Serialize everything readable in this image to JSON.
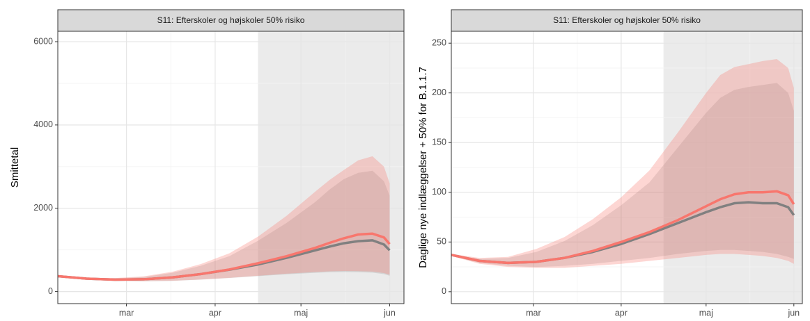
{
  "chart_data": [
    {
      "type": "line",
      "title": "S11: Efterskoler og højskoler 50% risiko",
      "ylabel": "Smittetal",
      "x": [
        36,
        46,
        56,
        66,
        76,
        86,
        96,
        106,
        116,
        126,
        131,
        136,
        141,
        146,
        150,
        152
      ],
      "xlim": [
        36,
        157
      ],
      "xticks": [
        {
          "value": 60,
          "label": "mar"
        },
        {
          "value": 91,
          "label": "apr"
        },
        {
          "value": 121,
          "label": "maj"
        },
        {
          "value": 152,
          "label": "jun"
        }
      ],
      "ylim": [
        -290,
        6250
      ],
      "yticks": [
        0,
        2000,
        4000,
        6000
      ],
      "grid": true,
      "shaded_from": 106,
      "series": [
        {
          "color": "#808080",
          "values": [
            370,
            310,
            285,
            295,
            340,
            420,
            525,
            650,
            810,
            990,
            1080,
            1160,
            1210,
            1230,
            1130,
            990
          ],
          "lower": [
            355,
            285,
            255,
            245,
            255,
            285,
            325,
            370,
            415,
            450,
            465,
            470,
            465,
            455,
            420,
            380
          ],
          "upper": [
            370,
            325,
            315,
            350,
            450,
            620,
            850,
            1220,
            1650,
            2150,
            2450,
            2700,
            2850,
            2900,
            2650,
            2300
          ]
        },
        {
          "color": "#F8766D",
          "values": [
            370,
            310,
            285,
            295,
            340,
            420,
            530,
            680,
            850,
            1050,
            1170,
            1280,
            1370,
            1390,
            1300,
            1140
          ],
          "lower": [
            360,
            290,
            260,
            250,
            260,
            290,
            330,
            380,
            430,
            470,
            485,
            495,
            490,
            480,
            445,
            405
          ],
          "upper": [
            375,
            335,
            325,
            365,
            475,
            660,
            920,
            1320,
            1820,
            2400,
            2680,
            2920,
            3150,
            3250,
            3000,
            2600
          ]
        }
      ]
    },
    {
      "type": "line",
      "title": "S11: Efterskoler og højskoler 50% risiko",
      "ylabel": "Daglige nye indlæggelser + 50% for B.1.1.7",
      "x": [
        31,
        41,
        51,
        61,
        71,
        81,
        91,
        101,
        111,
        121,
        126,
        131,
        136,
        141,
        146,
        150,
        152
      ],
      "xlim": [
        31,
        155
      ],
      "xticks": [
        {
          "value": 60,
          "label": "mar"
        },
        {
          "value": 91,
          "label": "apr"
        },
        {
          "value": 121,
          "label": "maj"
        },
        {
          "value": 152,
          "label": "jun"
        }
      ],
      "ylim": [
        -12,
        262
      ],
      "yticks": [
        0,
        50,
        100,
        150,
        200,
        250
      ],
      "grid": true,
      "shaded_from": 106,
      "series": [
        {
          "color": "#808080",
          "values": [
            37,
            31,
            29,
            30,
            34,
            40,
            48,
            58,
            69,
            80,
            85,
            89,
            90,
            89,
            89,
            85,
            77
          ],
          "lower": [
            36,
            29,
            26,
            25,
            26,
            28,
            31,
            34,
            38,
            41,
            42,
            42,
            41,
            40,
            38,
            35,
            33
          ],
          "upper": [
            37,
            33,
            34,
            40,
            51,
            67,
            87,
            110,
            145,
            180,
            195,
            203,
            206,
            208,
            210,
            200,
            182
          ]
        },
        {
          "color": "#F8766D",
          "values": [
            37,
            31,
            29,
            30,
            34,
            41,
            50,
            60,
            72,
            86,
            93,
            98,
            100,
            100,
            101,
            97,
            88
          ],
          "lower": [
            36,
            28,
            25,
            24,
            24,
            26,
            28,
            31,
            34,
            37,
            38,
            38,
            37,
            36,
            34,
            31,
            28
          ],
          "upper": [
            38,
            34,
            35,
            43,
            55,
            73,
            95,
            122,
            160,
            200,
            218,
            226,
            229,
            232,
            234,
            225,
            205
          ]
        }
      ]
    }
  ]
}
